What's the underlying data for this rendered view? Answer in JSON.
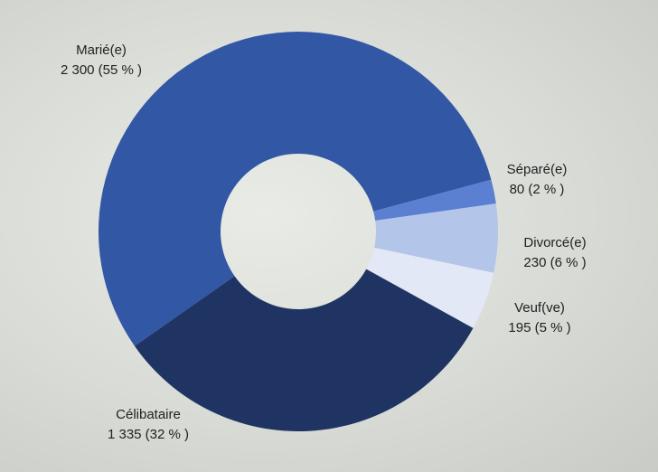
{
  "chart_data": {
    "type": "pie",
    "donut": true,
    "categories": [
      "Marié(e)",
      "Séparé(e)",
      "Divorcé(e)",
      "Veuf(ve)",
      "Célibataire"
    ],
    "values": [
      2300,
      80,
      230,
      195,
      1335
    ],
    "value_labels": [
      "2 300 (55 % )",
      "80 (2 % )",
      "230 (6 % )",
      "195 (5 % )",
      "1 335 (32 % )"
    ],
    "colors": [
      "#3257a5",
      "#5b80d2",
      "#b4c5ea",
      "#e2e8f6",
      "#1f3463"
    ]
  }
}
